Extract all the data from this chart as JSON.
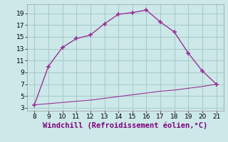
{
  "line1_x": [
    8,
    9,
    10,
    11,
    12,
    13,
    14,
    15,
    16,
    17,
    18,
    19,
    20,
    21
  ],
  "line1_y": [
    3.5,
    10.0,
    13.2,
    14.7,
    15.3,
    17.2,
    18.8,
    19.1,
    19.5,
    17.5,
    15.8,
    12.2,
    9.2,
    7.0
  ],
  "line2_x": [
    8,
    9,
    10,
    11,
    12,
    13,
    14,
    15,
    16,
    17,
    18,
    19,
    20,
    21
  ],
  "line2_y": [
    3.5,
    3.7,
    3.9,
    4.1,
    4.3,
    4.6,
    4.9,
    5.2,
    5.5,
    5.8,
    6.0,
    6.3,
    6.6,
    7.0
  ],
  "color": "#993399",
  "bg_color": "#cce8e8",
  "grid_color": "#aacccc",
  "xlabel": "Windchill (Refroidissement éolien,°C)",
  "xlabel_color": "#800080",
  "xlim": [
    7.5,
    21.5
  ],
  "ylim": [
    2.5,
    20.5
  ],
  "xticks": [
    8,
    9,
    10,
    11,
    12,
    13,
    14,
    15,
    16,
    17,
    18,
    19,
    20,
    21
  ],
  "yticks": [
    3,
    5,
    7,
    9,
    11,
    13,
    15,
    17,
    19
  ],
  "tick_fontsize": 6.5,
  "xlabel_fontsize": 7.5,
  "marker": "+"
}
